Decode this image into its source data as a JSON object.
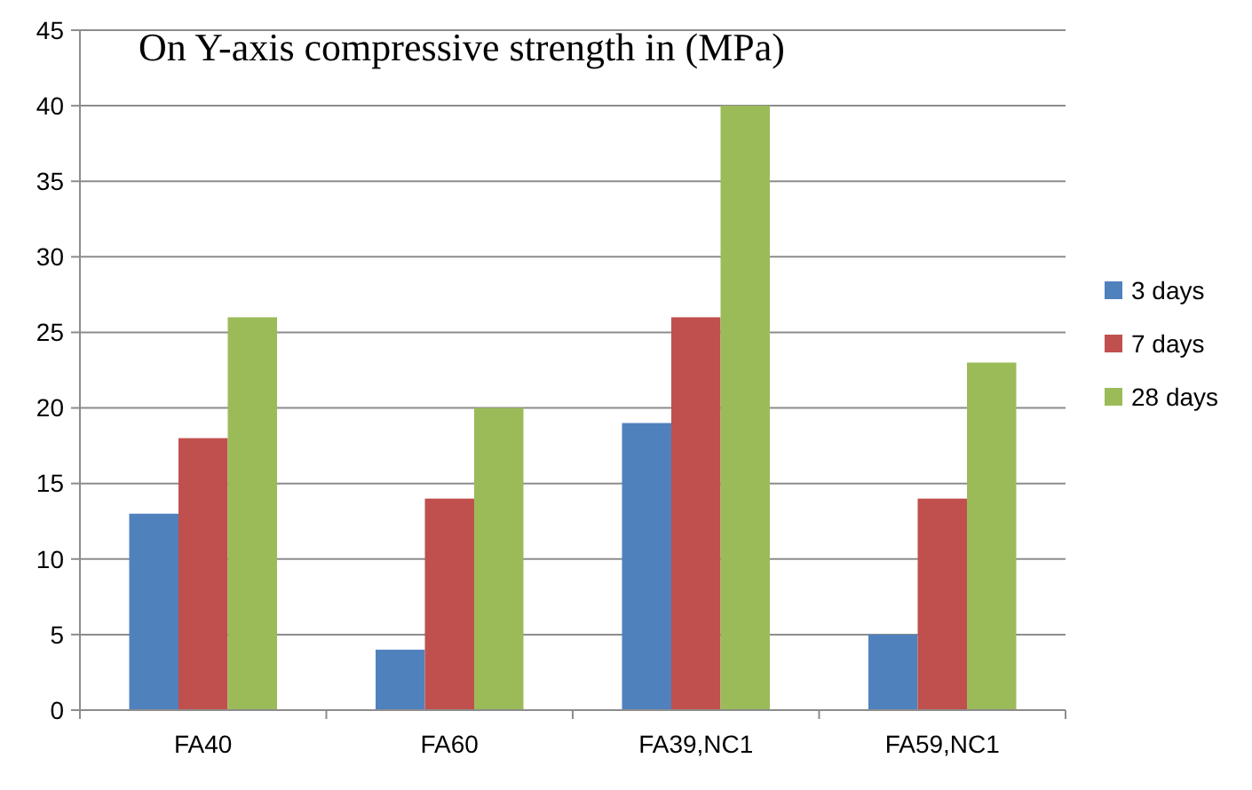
{
  "chart_data": {
    "type": "bar",
    "title": "On Y-axis compressive strength in (MPa)",
    "categories": [
      "FA40",
      "FA60",
      "FA39,NC1",
      "FA59,NC1"
    ],
    "series": [
      {
        "name": "3 days",
        "color": "#4f81bd",
        "values": [
          13,
          4,
          19,
          5
        ]
      },
      {
        "name": "7 days",
        "color": "#c0504d",
        "values": [
          18,
          14,
          26,
          14
        ]
      },
      {
        "name": "28 days",
        "color": "#9bbb59",
        "values": [
          26,
          20,
          40,
          23
        ]
      }
    ],
    "ylim": [
      0,
      45
    ],
    "yticks": [
      0,
      5,
      10,
      15,
      20,
      25,
      30,
      35,
      40,
      45
    ],
    "grid": "y",
    "legend": "right"
  }
}
